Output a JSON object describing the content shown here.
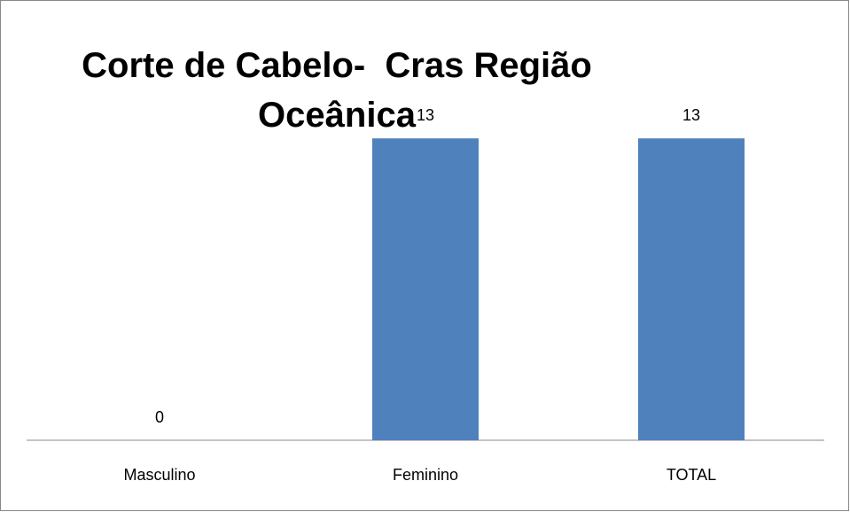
{
  "chart_data": {
    "type": "bar",
    "title": "Corte de Cabelo-  Cras Região Oceânica",
    "categories": [
      "Masculino",
      "Feminino",
      "TOTAL"
    ],
    "values": [
      0,
      13,
      13
    ],
    "color": "#4f81bd",
    "ylim": [
      0,
      14
    ]
  }
}
